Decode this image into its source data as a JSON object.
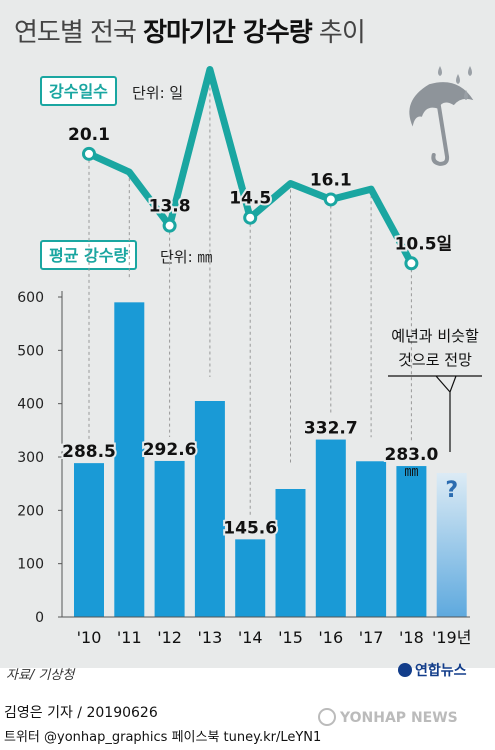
{
  "header": {
    "title_light": "연도별 전국",
    "title_bold": "장마기간 강수량",
    "title_suffix": "추이"
  },
  "legend": {
    "days_badge": "강수일수",
    "days_unit": "단위: 일",
    "rain_badge": "평균 강수량",
    "rain_unit": "단위: ㎜"
  },
  "annotation": {
    "line1": "예년과 비슷할",
    "line2": "것으로 전망",
    "unknown_mark": "?"
  },
  "colors": {
    "bar": "#1a9ad6",
    "line": "#1aa6a1",
    "forecast_bar_top": "#dcebf5",
    "forecast_bar_bottom": "#5ea9de"
  },
  "chart_data": [
    {
      "type": "line",
      "name": "강수일수",
      "x": [
        "'10",
        "'11",
        "'12",
        "'13",
        "'14",
        "'15",
        "'16",
        "'17",
        "'18"
      ],
      "y": [
        20.1,
        null,
        13.8,
        null,
        14.5,
        null,
        16.1,
        null,
        10.5
      ],
      "y_estimated": [
        20.1,
        18.5,
        13.8,
        27.5,
        14.5,
        17.5,
        16.1,
        17.0,
        10.5
      ],
      "labels": [
        "20.1",
        "",
        "13.8",
        "",
        "14.5",
        "",
        "16.1",
        "",
        "10.5일"
      ],
      "icon": "umbrella-icon"
    },
    {
      "type": "bar",
      "name": "평균 강수량",
      "categories": [
        "'10",
        "'11",
        "'12",
        "'13",
        "'14",
        "'15",
        "'16",
        "'17",
        "'18",
        "'19년"
      ],
      "values": [
        288.5,
        590,
        292.6,
        405,
        145.6,
        240,
        332.7,
        292,
        283.0,
        null
      ],
      "labels": [
        "288.5",
        "",
        "292.6",
        "",
        "145.6",
        "",
        "332.7",
        "",
        "283.0",
        "?"
      ],
      "ylim": [
        0,
        600
      ],
      "yticks": [
        0,
        100,
        200,
        300,
        400,
        500,
        600
      ],
      "grid": false,
      "unit_label": "㎜"
    }
  ],
  "footer": {
    "source": "자료/ 기상청",
    "logo": "연합뉴스",
    "byline": "김영은 기자 / 20190626",
    "social": "트위터 @yonhap_graphics  페이스북 tuney.kr/LeYN1",
    "watermark": "YONHAP NEWS"
  }
}
